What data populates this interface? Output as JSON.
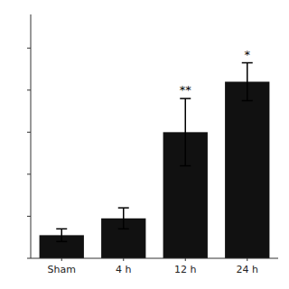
{
  "chart_data": {
    "type": "bar",
    "categories": [
      "Sham",
      "4 h",
      "12 h",
      "24 h"
    ],
    "values": [
      5.5,
      9.5,
      30.0,
      42.0
    ],
    "errors": [
      1.5,
      2.5,
      8.0,
      4.5
    ],
    "color": "#111111",
    "ylim": [
      0,
      58
    ],
    "yticks": [
      0,
      10,
      20,
      30,
      40,
      50
    ],
    "annotations": [
      {
        "text": "**",
        "x": "12 h"
      },
      {
        "text": "*",
        "x": "24 h"
      }
    ],
    "tick_labels": "x",
    "grid": false
  }
}
